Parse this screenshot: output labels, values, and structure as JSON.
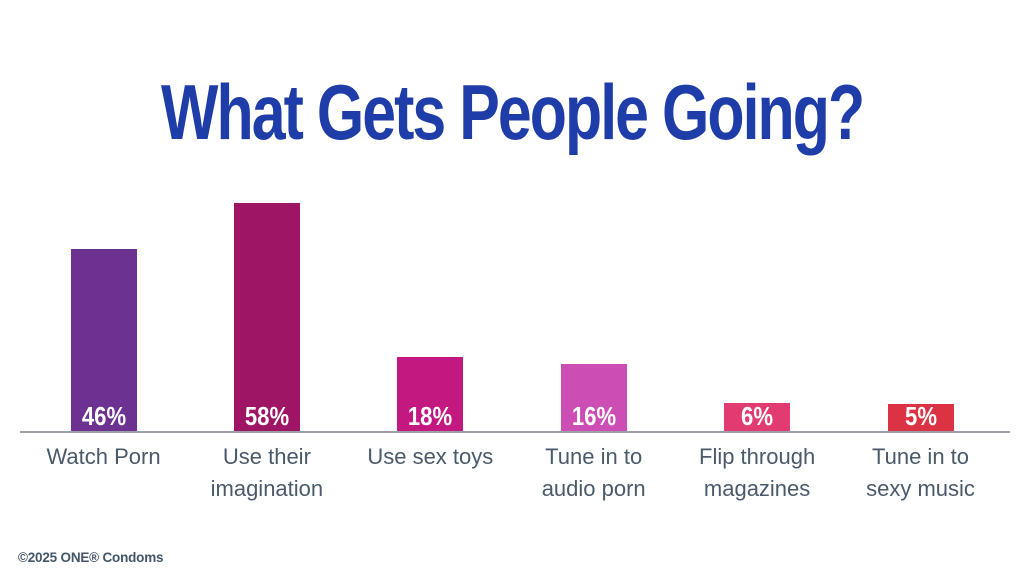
{
  "title": {
    "text": "What Gets People Going?",
    "color": "#1E3DA8"
  },
  "footer": {
    "text": "©2025 ONE® Condoms",
    "color": "#44566A"
  },
  "chart_data": {
    "type": "bar",
    "title": "What Gets People Going?",
    "categories": [
      "Watch Porn",
      "Use their\nimagination",
      "Use sex toys",
      "Tune in to\naudio porn",
      "Flip through\nmagazines",
      "Tune in to\nsexy music"
    ],
    "values": [
      46,
      58,
      18,
      16,
      6,
      5
    ],
    "value_labels": [
      "46%",
      "58%",
      "18%",
      "16%",
      "6%",
      "5%"
    ],
    "bar_colors": [
      "#6C3191",
      "#9E1566",
      "#C2187F",
      "#CC4DB4",
      "#E23B71",
      "#DB3244"
    ],
    "xlabel": "",
    "ylabel": "",
    "ylim": [
      0,
      60
    ],
    "grid": false,
    "legend": "none",
    "value_labels_position": "inside-bottom",
    "value_label_color": "#FFFFFF",
    "category_label_color": "#4A5A6B",
    "axis_line_color": "#9AA0A6",
    "background": "#FFFFFF"
  }
}
